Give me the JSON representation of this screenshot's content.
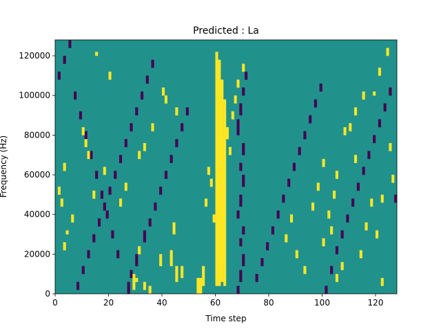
{
  "chart_data": {
    "type": "heatmap",
    "title": "Predicted : La",
    "xlabel": "Time step",
    "ylabel": "Frequency (Hz)",
    "xlim": [
      0,
      128
    ],
    "ylim": [
      0,
      128000
    ],
    "xticks": [
      0,
      20,
      40,
      60,
      80,
      100,
      120
    ],
    "xtick_labels": [
      "0",
      "20",
      "40",
      "60",
      "80",
      "100",
      "120"
    ],
    "yticks": [
      0,
      20000,
      40000,
      60000,
      80000,
      100000,
      120000
    ],
    "ytick_labels": [
      "0",
      "20000",
      "40000",
      "60000",
      "80000",
      "100000",
      "120000"
    ],
    "grid": false,
    "legend": "none",
    "colormap": "viridis",
    "levels": {
      "low": "#440154",
      "mid": "#21918c",
      "high": "#fde725"
    },
    "background_level": "mid",
    "n_time_steps": 128,
    "n_freq_bins": 128,
    "description": "",
    "cells_high": [
      [
        60,
        4,
        122
      ],
      [
        61,
        4,
        118
      ],
      [
        62,
        6,
        108
      ],
      [
        63,
        4,
        98
      ],
      [
        61,
        10,
        90
      ],
      [
        62,
        14,
        80
      ],
      [
        61,
        18,
        70
      ],
      [
        62,
        20,
        60
      ],
      [
        61,
        24,
        50
      ],
      [
        62,
        30,
        40
      ],
      [
        63,
        34,
        30
      ],
      [
        62,
        28,
        20
      ],
      [
        62,
        20,
        10
      ],
      [
        63,
        18,
        4
      ],
      [
        53,
        0,
        8
      ],
      [
        54,
        0,
        8
      ],
      [
        55,
        4,
        14
      ],
      [
        29,
        2,
        10
      ],
      [
        30,
        6,
        8
      ],
      [
        33,
        2,
        6
      ],
      [
        35,
        0,
        4
      ],
      [
        45,
        6,
        14
      ],
      [
        47,
        8,
        14
      ],
      [
        31,
        20,
        24
      ],
      [
        39,
        14,
        20
      ],
      [
        43,
        14,
        22
      ],
      [
        44,
        30,
        36
      ],
      [
        24,
        44,
        48
      ],
      [
        26,
        52,
        56
      ],
      [
        14,
        48,
        52
      ],
      [
        18,
        60,
        64
      ],
      [
        10,
        80,
        84
      ],
      [
        11,
        74,
        78
      ],
      [
        12,
        68,
        72
      ],
      [
        15,
        120,
        122
      ],
      [
        20,
        108,
        112
      ],
      [
        40,
        100,
        104
      ],
      [
        41,
        96,
        100
      ],
      [
        3,
        22,
        26
      ],
      [
        4,
        30,
        32
      ],
      [
        6,
        36,
        40
      ],
      [
        2,
        44,
        48
      ],
      [
        1,
        50,
        54
      ],
      [
        3,
        62,
        66
      ],
      [
        33,
        72,
        76
      ],
      [
        31,
        68,
        72
      ],
      [
        36,
        82,
        86
      ],
      [
        45,
        90,
        94
      ],
      [
        100,
        24,
        28
      ],
      [
        102,
        38,
        42
      ],
      [
        104,
        48,
        52
      ],
      [
        105,
        58,
        62
      ],
      [
        110,
        82,
        86
      ],
      [
        112,
        90,
        94
      ],
      [
        119,
        100,
        102
      ],
      [
        121,
        110,
        114
      ],
      [
        124,
        120,
        124
      ],
      [
        122,
        4,
        8
      ],
      [
        57,
        60,
        64
      ],
      [
        58,
        54,
        58
      ],
      [
        56,
        44,
        48
      ],
      [
        59,
        36,
        40
      ],
      [
        64,
        78,
        84
      ],
      [
        65,
        70,
        74
      ],
      [
        66,
        88,
        92
      ],
      [
        67,
        96,
        100
      ],
      [
        68,
        104,
        108
      ],
      [
        70,
        112,
        116
      ],
      [
        86,
        26,
        30
      ],
      [
        88,
        36,
        40
      ],
      [
        90,
        18,
        22
      ],
      [
        93,
        10,
        14
      ],
      [
        96,
        42,
        46
      ],
      [
        98,
        52,
        56
      ],
      [
        100,
        64,
        68
      ],
      [
        103,
        30,
        34
      ],
      [
        105,
        6,
        10
      ],
      [
        107,
        12,
        16
      ],
      [
        116,
        32,
        36
      ],
      [
        118,
        44,
        48
      ],
      [
        125,
        72,
        76
      ],
      [
        126,
        56,
        60
      ],
      [
        122,
        46,
        50
      ],
      [
        120,
        28,
        32
      ],
      [
        114,
        18,
        22
      ],
      [
        108,
        80,
        84
      ],
      [
        112,
        66,
        70
      ],
      [
        115,
        98,
        102
      ]
    ],
    "cells_low": [
      [
        68,
        0,
        4
      ],
      [
        69,
        6,
        12
      ],
      [
        70,
        14,
        20
      ],
      [
        69,
        24,
        28
      ],
      [
        70,
        30,
        34
      ],
      [
        68,
        38,
        42
      ],
      [
        69,
        44,
        50
      ],
      [
        70,
        54,
        60
      ],
      [
        69,
        62,
        66
      ],
      [
        70,
        70,
        76
      ],
      [
        68,
        80,
        88
      ],
      [
        69,
        90,
        96
      ],
      [
        70,
        100,
        104
      ],
      [
        71,
        108,
        112
      ],
      [
        27,
        0,
        6
      ],
      [
        28,
        8,
        12
      ],
      [
        30,
        14,
        20
      ],
      [
        33,
        26,
        32
      ],
      [
        35,
        34,
        38
      ],
      [
        37,
        42,
        46
      ],
      [
        39,
        50,
        54
      ],
      [
        41,
        58,
        62
      ],
      [
        43,
        66,
        70
      ],
      [
        45,
        74,
        78
      ],
      [
        47,
        82,
        86
      ],
      [
        49,
        90,
        94
      ],
      [
        8,
        2,
        6
      ],
      [
        10,
        10,
        14
      ],
      [
        12,
        18,
        22
      ],
      [
        14,
        26,
        30
      ],
      [
        16,
        34,
        38
      ],
      [
        18,
        42,
        46
      ],
      [
        20,
        50,
        54
      ],
      [
        22,
        58,
        62
      ],
      [
        24,
        66,
        70
      ],
      [
        26,
        74,
        78
      ],
      [
        28,
        82,
        86
      ],
      [
        30,
        90,
        94
      ],
      [
        32,
        98,
        102
      ],
      [
        34,
        106,
        110
      ],
      [
        36,
        114,
        118
      ],
      [
        75,
        6,
        10
      ],
      [
        77,
        14,
        18
      ],
      [
        79,
        22,
        26
      ],
      [
        81,
        30,
        34
      ],
      [
        83,
        38,
        42
      ],
      [
        85,
        46,
        50
      ],
      [
        87,
        54,
        58
      ],
      [
        89,
        62,
        66
      ],
      [
        91,
        70,
        74
      ],
      [
        93,
        78,
        82
      ],
      [
        95,
        86,
        90
      ],
      [
        97,
        94,
        98
      ],
      [
        99,
        102,
        106
      ],
      [
        101,
        0,
        4
      ],
      [
        103,
        10,
        14
      ],
      [
        105,
        20,
        24
      ],
      [
        107,
        28,
        32
      ],
      [
        109,
        36,
        40
      ],
      [
        111,
        44,
        48
      ],
      [
        113,
        52,
        56
      ],
      [
        115,
        60,
        64
      ],
      [
        117,
        68,
        72
      ],
      [
        119,
        76,
        80
      ],
      [
        121,
        84,
        88
      ],
      [
        123,
        92,
        96
      ],
      [
        125,
        100,
        104
      ],
      [
        127,
        46,
        50
      ],
      [
        1,
        108,
        112
      ],
      [
        3,
        116,
        120
      ],
      [
        5,
        124,
        128
      ],
      [
        7,
        98,
        102
      ],
      [
        9,
        88,
        92
      ],
      [
        11,
        78,
        82
      ],
      [
        13,
        68,
        72
      ],
      [
        15,
        58,
        62
      ],
      [
        17,
        48,
        52
      ],
      [
        19,
        38,
        42
      ],
      [
        21,
        28,
        32
      ],
      [
        23,
        18,
        22
      ]
    ]
  }
}
